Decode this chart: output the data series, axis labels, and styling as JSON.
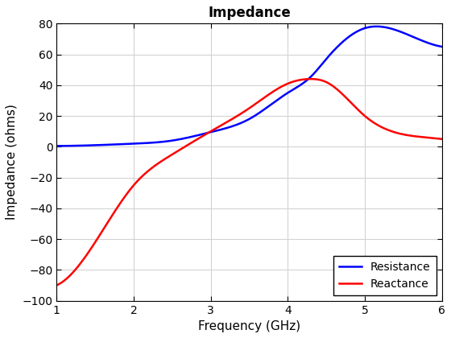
{
  "title": "Impedance",
  "xlabel": "Frequency (GHz)",
  "ylabel": "Impedance (ohms)",
  "xlim": [
    1,
    6
  ],
  "ylim": [
    -100,
    80
  ],
  "xticks": [
    1,
    2,
    3,
    4,
    5,
    6
  ],
  "yticks": [
    -100,
    -80,
    -60,
    -40,
    -20,
    0,
    20,
    40,
    60,
    80
  ],
  "resistance_color": "#0000FF",
  "reactance_color": "#FF0000",
  "background_color": "#FFFFFF",
  "legend_labels": [
    "Resistance",
    "Reactance"
  ],
  "title_fontsize": 12,
  "axis_label_fontsize": 11,
  "line_width": 1.8,
  "grid_color": "#D3D3D3",
  "res_keypoints_f": [
    1.0,
    1.5,
    2.0,
    2.5,
    3.0,
    3.5,
    4.0,
    4.3,
    4.5,
    5.0,
    5.5,
    6.0
  ],
  "res_keypoints_v": [
    0.5,
    1.0,
    2.0,
    4.0,
    9.5,
    18.0,
    35.0,
    45.5,
    57.0,
    77.0,
    74.0,
    65.0
  ],
  "reac_keypoints_f": [
    1.0,
    1.5,
    2.0,
    2.5,
    3.0,
    3.5,
    4.0,
    4.3,
    4.5,
    5.0,
    5.5,
    6.0
  ],
  "reac_keypoints_v": [
    -90.0,
    -62.0,
    -25.0,
    -5.0,
    10.0,
    25.0,
    41.0,
    44.0,
    42.0,
    20.0,
    8.0,
    5.0
  ]
}
